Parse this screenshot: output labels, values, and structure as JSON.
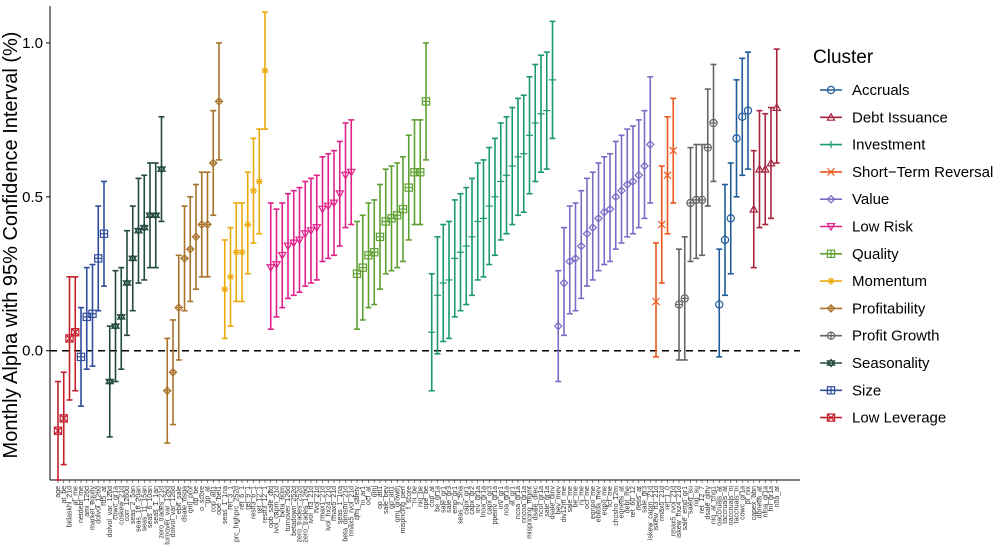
{
  "chart_data": {
    "type": "errorbar",
    "title": "",
    "xlabel": "",
    "ylabel": "Monthly Alpha with 95% Confidence Interval (%)",
    "ylim": [
      -0.42,
      1.12
    ],
    "yticks": [
      0.0,
      0.5,
      1.0
    ],
    "ytick_labels": [
      "0.0",
      "0.5",
      "1.0"
    ],
    "reference_line": {
      "y": 0.0,
      "style": "dashed"
    },
    "grid": false,
    "legend": {
      "title": "Cluster",
      "placement": "right"
    },
    "clusters": [
      {
        "name": "Accruals",
        "color": "#1F5C99",
        "marker": "circle"
      },
      {
        "name": "Debt Issuance",
        "color": "#A6243D",
        "marker": "triangle-up"
      },
      {
        "name": "Investment",
        "color": "#1A9A6C",
        "marker": "plus"
      },
      {
        "name": "Short−Term Reversal",
        "color": "#E8581F",
        "marker": "x"
      },
      {
        "name": "Value",
        "color": "#7B6BC4",
        "marker": "diamond"
      },
      {
        "name": "Low Risk",
        "color": "#E0218A",
        "marker": "triangle-down"
      },
      {
        "name": "Quality",
        "color": "#5FA032",
        "marker": "square-plus"
      },
      {
        "name": "Momentum",
        "color": "#EBAA0C",
        "marker": "asterisk"
      },
      {
        "name": "Profitability",
        "color": "#A8722A",
        "marker": "diamond-plus"
      },
      {
        "name": "Profit Growth",
        "color": "#666666",
        "marker": "circle-plus"
      },
      {
        "name": "Seasonality",
        "color": "#234A40",
        "marker": "star-david"
      },
      {
        "name": "Size",
        "color": "#2F4D9C",
        "marker": "square-cross"
      },
      {
        "name": "Low Leverage",
        "color": "#C51F2E",
        "marker": "square-x"
      }
    ],
    "points": [
      {
        "label": "age",
        "cluster": "Low Leverage",
        "y": -0.26,
        "lo": -0.42,
        "hi": -0.1
      },
      {
        "label": "at_be",
        "cluster": "Low Leverage",
        "y": -0.22,
        "lo": -0.37,
        "hi": -0.07
      },
      {
        "label": "bidaskhl_21d",
        "cluster": "Low Leverage",
        "y": 0.04,
        "lo": -0.16,
        "hi": 0.24
      },
      {
        "label": "at_me",
        "cluster": "Low Leverage",
        "y": 0.06,
        "lo": -0.13,
        "hi": 0.24
      },
      {
        "label": "netdebt_me",
        "cluster": "Size",
        "y": -0.02,
        "lo": -0.18,
        "hi": 0.14
      },
      {
        "label": "ami_126d",
        "cluster": "Size",
        "y": 0.11,
        "lo": -0.06,
        "hi": 0.27
      },
      {
        "label": "market_equity",
        "cluster": "Size",
        "y": 0.12,
        "lo": -0.05,
        "hi": 0.28
      },
      {
        "label": "dolvol_126d",
        "cluster": "Size",
        "y": 0.3,
        "lo": 0.13,
        "hi": 0.47
      },
      {
        "label": "rd5_at",
        "cluster": "Size",
        "y": 0.38,
        "lo": 0.21,
        "hi": 0.55
      },
      {
        "label": "dolvol_var_126d",
        "cluster": "Seasonality",
        "y": -0.1,
        "lo": -0.28,
        "hi": 0.08
      },
      {
        "label": "cowc_gr1a",
        "cluster": "Seasonality",
        "y": 0.08,
        "lo": -0.1,
        "hi": 0.26
      },
      {
        "label": "coskew_21d",
        "cluster": "Seasonality",
        "y": 0.11,
        "lo": -0.06,
        "hi": 0.27
      },
      {
        "label": "corr_1260d",
        "cluster": "Seasonality",
        "y": 0.22,
        "lo": 0.05,
        "hi": 0.39
      },
      {
        "label": "seas_2_5an",
        "cluster": "Seasonality",
        "y": 0.3,
        "lo": 0.13,
        "hi": 0.47
      },
      {
        "label": "seas_16_20an",
        "cluster": "Seasonality",
        "y": 0.39,
        "lo": 0.22,
        "hi": 0.56
      },
      {
        "label": "seas_11_15an",
        "cluster": "Seasonality",
        "y": 0.4,
        "lo": 0.23,
        "hi": 0.57
      },
      {
        "label": "seas_6_10an",
        "cluster": "Seasonality",
        "y": 0.44,
        "lo": 0.27,
        "hi": 0.61
      },
      {
        "label": "seas_1_1an",
        "cluster": "Seasonality",
        "y": 0.44,
        "lo": 0.27,
        "hi": 0.61
      },
      {
        "label": "zero_trades_21d",
        "cluster": "Seasonality",
        "y": 0.59,
        "lo": 0.42,
        "hi": 0.76
      },
      {
        "label": "turnover_var_126d",
        "cluster": "Profitability",
        "y": -0.13,
        "lo": -0.3,
        "hi": 0.04
      },
      {
        "label": "dolvol_var_126d",
        "cluster": "Profitability",
        "y": -0.07,
        "lo": -0.24,
        "hi": 0.1
      },
      {
        "label": "ebit_sale",
        "cluster": "Profitability",
        "y": 0.14,
        "lo": -0.03,
        "hi": 0.31
      },
      {
        "label": "dsale_dsga",
        "cluster": "Profitability",
        "y": 0.3,
        "lo": 0.13,
        "hi": 0.47
      },
      {
        "label": "qmj_prof",
        "cluster": "Profitability",
        "y": 0.33,
        "lo": 0.16,
        "hi": 0.5
      },
      {
        "label": "op_be",
        "cluster": "Profitability",
        "y": 0.37,
        "lo": 0.2,
        "hi": 0.54
      },
      {
        "label": "o_score",
        "cluster": "Profitability",
        "y": 0.41,
        "lo": 0.24,
        "hi": 0.58
      },
      {
        "label": "gp_at",
        "cluster": "Profitability",
        "y": 0.41,
        "lo": 0.24,
        "hi": 0.58
      },
      {
        "label": "cop_atl1",
        "cluster": "Profitability",
        "y": 0.61,
        "lo": 0.44,
        "hi": 0.78
      },
      {
        "label": "ope_bel1",
        "cluster": "Profitability",
        "y": 0.81,
        "lo": 0.62,
        "hi": 1.0
      },
      {
        "label": "seas_1_1na",
        "cluster": "Momentum",
        "y": 0.2,
        "lo": 0.04,
        "hi": 0.36
      },
      {
        "label": "ret_3_1",
        "cluster": "Momentum",
        "y": 0.24,
        "lo": 0.08,
        "hi": 0.4
      },
      {
        "label": "prc_highprc_252d",
        "cluster": "Momentum",
        "y": 0.32,
        "lo": 0.16,
        "hi": 0.48
      },
      {
        "label": "ret_6_1",
        "cluster": "Momentum",
        "y": 0.32,
        "lo": 0.16,
        "hi": 0.48
      },
      {
        "label": "ret_9_1",
        "cluster": "Momentum",
        "y": 0.41,
        "lo": 0.25,
        "hi": 0.58
      },
      {
        "label": "resff3_6_1",
        "cluster": "Momentum",
        "y": 0.52,
        "lo": 0.35,
        "hi": 0.69
      },
      {
        "label": "ret_12_1",
        "cluster": "Momentum",
        "y": 0.55,
        "lo": 0.38,
        "hi": 0.72
      },
      {
        "label": "resff3_12_1",
        "cluster": "Momentum",
        "y": 0.91,
        "lo": 0.72,
        "hi": 1.1
      },
      {
        "label": "opb_sale_dtd",
        "cluster": "Low Risk",
        "y": 0.27,
        "lo": 0.07,
        "hi": 0.48
      },
      {
        "label": "ivol_capm_21d",
        "cluster": "Low Risk",
        "y": 0.28,
        "lo": 0.11,
        "hi": 0.46
      },
      {
        "label": "beta_60m",
        "cluster": "Low Risk",
        "y": 0.31,
        "lo": 0.14,
        "hi": 0.48
      },
      {
        "label": "turnover_126d",
        "cluster": "Low Risk",
        "y": 0.34,
        "lo": 0.17,
        "hi": 0.51
      },
      {
        "label": "betadown_252d",
        "cluster": "Low Risk",
        "y": 0.35,
        "lo": 0.18,
        "hi": 0.52
      },
      {
        "label": "zero_trades_252d",
        "cluster": "Low Risk",
        "y": 0.36,
        "lo": 0.19,
        "hi": 0.53
      },
      {
        "label": "zero_trades_126d",
        "cluster": "Low Risk",
        "y": 0.38,
        "lo": 0.21,
        "hi": 0.55
      },
      {
        "label": "ivol_ff3_21d",
        "cluster": "Low Risk",
        "y": 0.39,
        "lo": 0.22,
        "hi": 0.56
      },
      {
        "label": "rvol_21d",
        "cluster": "Low Risk",
        "y": 0.4,
        "lo": 0.23,
        "hi": 0.57
      },
      {
        "label": "rmax1_21d",
        "cluster": "Low Risk",
        "y": 0.46,
        "lo": 0.29,
        "hi": 0.63
      },
      {
        "label": "ivol_hxz4_21d",
        "cluster": "Low Risk",
        "y": 0.47,
        "lo": 0.3,
        "hi": 0.64
      },
      {
        "label": "rmax5_21d",
        "cluster": "Low Risk",
        "y": 0.48,
        "lo": 0.31,
        "hi": 0.65
      },
      {
        "label": "seas_1_1na",
        "cluster": "Low Risk",
        "y": 0.51,
        "lo": 0.34,
        "hi": 0.68
      },
      {
        "label": "beta_dimson_21d",
        "cluster": "Low Risk",
        "y": 0.57,
        "lo": 0.4,
        "hi": 0.74
      },
      {
        "label": "rmax5_rvol_21d",
        "cluster": "Low Risk",
        "y": 0.58,
        "lo": 0.41,
        "hi": 0.75
      },
      {
        "label": "qmj_safety",
        "cluster": "Quality",
        "y": 0.25,
        "lo": 0.07,
        "hi": 0.42
      },
      {
        "label": "ni_ar1",
        "cluster": "Quality",
        "y": 0.27,
        "lo": 0.1,
        "hi": 0.44
      },
      {
        "label": "ocf_at",
        "cluster": "Quality",
        "y": 0.31,
        "lo": 0.14,
        "hi": 0.48
      },
      {
        "label": "qmj",
        "cluster": "Quality",
        "y": 0.32,
        "lo": 0.15,
        "hi": 0.49
      },
      {
        "label": "op_atl1",
        "cluster": "Quality",
        "y": 0.37,
        "lo": 0.2,
        "hi": 0.54
      },
      {
        "label": "sale_bev",
        "cluster": "Quality",
        "y": 0.42,
        "lo": 0.25,
        "hi": 0.59
      },
      {
        "label": "gp_atl1",
        "cluster": "Quality",
        "y": 0.43,
        "lo": 0.26,
        "hi": 0.6
      },
      {
        "label": "qmj_growth",
        "cluster": "Quality",
        "y": 0.44,
        "lo": 0.27,
        "hi": 0.61
      },
      {
        "label": "mispricing_perf",
        "cluster": "Quality",
        "y": 0.46,
        "lo": 0.29,
        "hi": 0.63
      },
      {
        "label": "f_score",
        "cluster": "Quality",
        "y": 0.53,
        "lo": 0.36,
        "hi": 0.7
      },
      {
        "label": "ni_be",
        "cluster": "Quality",
        "y": 0.58,
        "lo": 0.41,
        "hi": 0.75
      },
      {
        "label": "niq_be",
        "cluster": "Quality",
        "y": 0.58,
        "lo": 0.41,
        "hi": 0.75
      },
      {
        "label": "ope_be",
        "cluster": "Quality",
        "y": 0.81,
        "lo": 0.62,
        "hi": 1.0
      },
      {
        "label": "cop_at",
        "cluster": "Investment",
        "y": 0.06,
        "lo": -0.13,
        "hi": 0.25
      },
      {
        "label": "be_gr1a",
        "cluster": "Investment",
        "y": 0.18,
        "lo": -0.01,
        "hi": 0.37
      },
      {
        "label": "sale_gr1",
        "cluster": "Investment",
        "y": 0.22,
        "lo": 0.03,
        "hi": 0.41
      },
      {
        "label": "sale_gr3",
        "cluster": "Investment",
        "y": 0.23,
        "lo": 0.04,
        "hi": 0.42
      },
      {
        "label": "emp_gr1",
        "cluster": "Investment",
        "y": 0.3,
        "lo": 0.11,
        "hi": 0.49
      },
      {
        "label": "seas_2_5na",
        "cluster": "Investment",
        "y": 0.32,
        "lo": 0.13,
        "hi": 0.51
      },
      {
        "label": "capx_gr1",
        "cluster": "Investment",
        "y": 0.34,
        "lo": 0.15,
        "hi": 0.53
      },
      {
        "label": "capx_gr2",
        "cluster": "Investment",
        "y": 0.37,
        "lo": 0.18,
        "hi": 0.56
      },
      {
        "label": "inv_gr1a",
        "cluster": "Investment",
        "y": 0.42,
        "lo": 0.23,
        "hi": 0.61
      },
      {
        "label": "lnoa_gr1a",
        "cluster": "Investment",
        "y": 0.43,
        "lo": 0.24,
        "hi": 0.62
      },
      {
        "label": "capx_gr3",
        "cluster": "Investment",
        "y": 0.47,
        "lo": 0.28,
        "hi": 0.66
      },
      {
        "label": "ppeinv_gr1a",
        "cluster": "Investment",
        "y": 0.5,
        "lo": 0.31,
        "hi": 0.69
      },
      {
        "label": "inv_gr1",
        "cluster": "Investment",
        "y": 0.55,
        "lo": 0.36,
        "hi": 0.74
      },
      {
        "label": "noa_gr1a",
        "cluster": "Investment",
        "y": 0.57,
        "lo": 0.38,
        "hi": 0.76
      },
      {
        "label": "at_gr1",
        "cluster": "Investment",
        "y": 0.6,
        "lo": 0.41,
        "hi": 0.79
      },
      {
        "label": "ncoa_gr1a",
        "cluster": "Investment",
        "y": 0.63,
        "lo": 0.44,
        "hi": 0.82
      },
      {
        "label": "nncoa_gr1a",
        "cluster": "Investment",
        "y": 0.64,
        "lo": 0.45,
        "hi": 0.83
      },
      {
        "label": "mispricing_mgmt",
        "cluster": "Investment",
        "y": 0.7,
        "lo": 0.51,
        "hi": 0.89
      },
      {
        "label": "dsale_drec",
        "cluster": "Investment",
        "y": 0.74,
        "lo": 0.55,
        "hi": 0.93
      },
      {
        "label": "ncol_gr1a",
        "cluster": "Investment",
        "y": 0.77,
        "lo": 0.58,
        "hi": 0.96
      },
      {
        "label": "sale_gr1a",
        "cluster": "Investment",
        "y": 0.78,
        "lo": 0.59,
        "hi": 0.97
      },
      {
        "label": "dsale_dinv",
        "cluster": "Investment",
        "y": 0.88,
        "lo": 0.69,
        "hi": 1.07
      },
      {
        "label": "bev_mev",
        "cluster": "Value",
        "y": 0.08,
        "lo": -0.1,
        "hi": 0.26
      },
      {
        "label": "div12m_me",
        "cluster": "Value",
        "y": 0.22,
        "lo": 0.05,
        "hi": 0.4
      },
      {
        "label": "sale_me",
        "cluster": "Value",
        "y": 0.29,
        "lo": 0.12,
        "hi": 0.47
      },
      {
        "label": "be_me",
        "cluster": "Value",
        "y": 0.3,
        "lo": 0.13,
        "hi": 0.48
      },
      {
        "label": "ni_me",
        "cluster": "Value",
        "y": 0.34,
        "lo": 0.17,
        "hi": 0.52
      },
      {
        "label": "ocf_me",
        "cluster": "Value",
        "y": 0.38,
        "lo": 0.21,
        "hi": 0.56
      },
      {
        "label": "eqnpo_me",
        "cluster": "Value",
        "y": 0.4,
        "lo": 0.23,
        "hi": 0.58
      },
      {
        "label": "ebitda_mev",
        "cluster": "Value",
        "y": 0.43,
        "lo": 0.26,
        "hi": 0.61
      },
      {
        "label": "eqpo_me",
        "cluster": "Value",
        "y": 0.45,
        "lo": 0.28,
        "hi": 0.63
      },
      {
        "label": "fcf_me",
        "cluster": "Value",
        "y": 0.46,
        "lo": 0.29,
        "hi": 0.64
      },
      {
        "label": "chcsho_12m",
        "cluster": "Value",
        "y": 0.5,
        "lo": 0.33,
        "hi": 0.68
      },
      {
        "label": "eqnetis_at",
        "cluster": "Value",
        "y": 0.52,
        "lo": 0.35,
        "hi": 0.7
      },
      {
        "label": "debt_me",
        "cluster": "Value",
        "y": 0.54,
        "lo": 0.37,
        "hi": 0.72
      },
      {
        "label": "ret_60_12",
        "cluster": "Value",
        "y": 0.55,
        "lo": 0.38,
        "hi": 0.73
      },
      {
        "label": "netis_at",
        "cluster": "Value",
        "y": 0.57,
        "lo": 0.4,
        "hi": 0.75
      },
      {
        "label": "sale_gr3",
        "cluster": "Value",
        "y": 0.6,
        "lo": 0.43,
        "hi": 0.78
      },
      {
        "label": "iskew_capm_21d",
        "cluster": "Value",
        "y": 0.67,
        "lo": 0.48,
        "hi": 0.89
      },
      {
        "label": "iskew_ff3_21d",
        "cluster": "Short−Term Reversal",
        "y": 0.16,
        "lo": -0.02,
        "hi": 0.35
      },
      {
        "label": "rmax5_21d",
        "cluster": "Short−Term Reversal",
        "y": 0.41,
        "lo": 0.22,
        "hi": 0.6
      },
      {
        "label": "ret_1_0",
        "cluster": "Short−Term Reversal",
        "y": 0.57,
        "lo": 0.38,
        "hi": 0.76
      },
      {
        "label": "rmax5_rvol_21d",
        "cluster": "Short−Term Reversal",
        "y": 0.65,
        "lo": 0.48,
        "hi": 0.82
      },
      {
        "label": "iskew_hxz4_21d",
        "cluster": "Profit Growth",
        "y": 0.15,
        "lo": -0.03,
        "hi": 0.33
      },
      {
        "label": "sale_emp_gr1",
        "cluster": "Profit Growth",
        "y": 0.17,
        "lo": -0.03,
        "hi": 0.37
      },
      {
        "label": "saleq_su",
        "cluster": "Profit Growth",
        "y": 0.48,
        "lo": 0.29,
        "hi": 0.66
      },
      {
        "label": "niq_su",
        "cluster": "Profit Growth",
        "y": 0.49,
        "lo": 0.3,
        "hi": 0.67
      },
      {
        "label": "ret_12_7",
        "cluster": "Profit Growth",
        "y": 0.49,
        "lo": 0.31,
        "hi": 0.67
      },
      {
        "label": "dsale_dinv",
        "cluster": "Profit Growth",
        "y": 0.66,
        "lo": 0.47,
        "hi": 0.85
      },
      {
        "label": "niq_at_chg1",
        "cluster": "Profit Growth",
        "y": 0.74,
        "lo": 0.55,
        "hi": 0.93
      },
      {
        "label": "oaccruals_at",
        "cluster": "Accruals",
        "y": 0.15,
        "lo": -0.02,
        "hi": 0.33
      },
      {
        "label": "taccruals_at",
        "cluster": "Accruals",
        "y": 0.36,
        "lo": 0.18,
        "hi": 0.54
      },
      {
        "label": "oaccruals_ni",
        "cluster": "Accruals",
        "y": 0.43,
        "lo": 0.25,
        "hi": 0.61
      },
      {
        "label": "taccruals_ni",
        "cluster": "Accruals",
        "y": 0.69,
        "lo": 0.5,
        "hi": 0.88
      },
      {
        "label": "cowc_gr1a",
        "cluster": "Accruals",
        "y": 0.76,
        "lo": 0.57,
        "hi": 0.95
      },
      {
        "label": "pi_nix",
        "cluster": "Accruals",
        "y": 0.78,
        "lo": 0.59,
        "hi": 0.97
      },
      {
        "label": "capex_abn",
        "cluster": "Debt Issuance",
        "y": 0.46,
        "lo": 0.27,
        "hi": 0.65
      },
      {
        "label": "dbnetis_at",
        "cluster": "Debt Issuance",
        "y": 0.59,
        "lo": 0.4,
        "hi": 0.78
      },
      {
        "label": "nfna_gr1a",
        "cluster": "Debt Issuance",
        "y": 0.59,
        "lo": 0.41,
        "hi": 0.77
      },
      {
        "label": "fnl_gr1a",
        "cluster": "Debt Issuance",
        "y": 0.61,
        "lo": 0.43,
        "hi": 0.79
      },
      {
        "label": "noa_at",
        "cluster": "Debt Issuance",
        "y": 0.79,
        "lo": 0.61,
        "hi": 0.98
      }
    ]
  }
}
